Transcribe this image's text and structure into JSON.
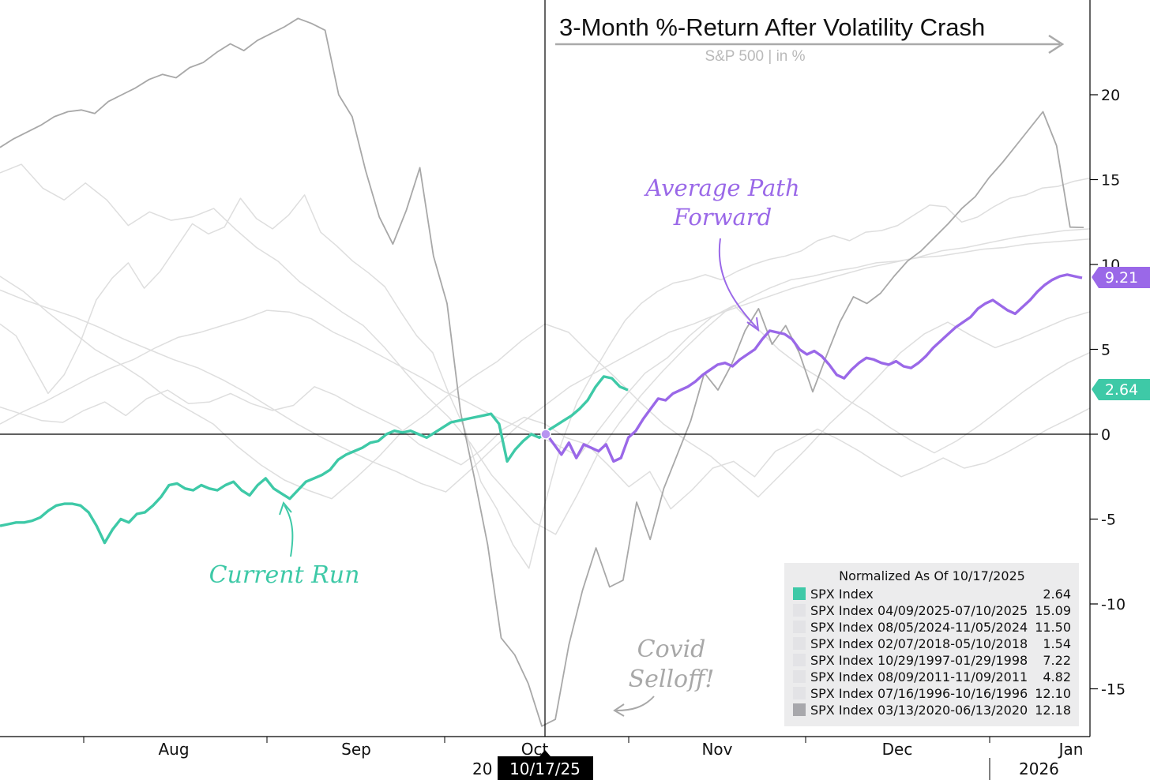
{
  "chart_data": {
    "type": "line",
    "title": "3-Month %-Return After Volatility Crash",
    "subtitle": "S&P 500  |  in %",
    "ylim": [
      -18,
      25
    ],
    "yticks": [
      20,
      15,
      10,
      5,
      0,
      -5,
      -10,
      -15
    ],
    "yticks_text": [
      "20",
      "15",
      "10",
      "5",
      "0",
      "-5",
      "-10",
      "-15"
    ],
    "x_tick_labels": [
      "Aug",
      "Sep",
      "Oct",
      "Nov",
      "Dec",
      "Jan"
    ],
    "x_year_left": "20",
    "x_year_right": "2026",
    "anchor_date": "10/17/25",
    "series": [
      {
        "name": "SPX Index",
        "value": 2.64,
        "value_text": "2.64",
        "color": "#3ec9a7",
        "x_range": [
          0,
          795
        ],
        "values": [
          -5.4,
          -5.3,
          -5.2,
          -5.2,
          -5.1,
          -4.9,
          -4.5,
          -4.2,
          -4.1,
          -4.1,
          -4.2,
          -4.6,
          -5.4,
          -6.4,
          -5.6,
          -5.0,
          -5.2,
          -4.7,
          -4.6,
          -4.2,
          -3.7,
          -3.0,
          -2.9,
          -3.2,
          -3.3,
          -3.0,
          -3.2,
          -3.3,
          -3.0,
          -2.8,
          -3.3,
          -3.6,
          -3.0,
          -2.6,
          -3.2,
          -3.5,
          -3.8,
          -3.3,
          -2.8,
          -2.6,
          -2.4,
          -2.1,
          -1.5,
          -1.2,
          -1.0,
          -0.8,
          -0.5,
          -0.4,
          0.0,
          0.2,
          0.1,
          0.2,
          0.0,
          -0.2,
          0.1,
          0.4,
          0.7,
          0.8,
          0.9,
          1.0,
          1.1,
          1.2,
          0.6,
          -1.6,
          -0.9,
          -0.4,
          0.0,
          -0.2,
          0.2,
          0.5,
          0.8,
          1.1,
          1.5,
          2.0,
          2.8,
          3.4,
          3.3,
          2.8,
          2.6
        ]
      },
      {
        "name": "Average Path Forward",
        "value": 9.21,
        "value_text": "9.21",
        "color": "#9a68e8",
        "x_range": [
          692,
          1370
        ],
        "values": [
          0.0,
          -0.6,
          -1.2,
          -0.5,
          -1.4,
          -0.6,
          -0.8,
          -1.0,
          -0.6,
          -1.6,
          -1.4,
          -0.2,
          0.2,
          0.9,
          1.5,
          2.1,
          2.0,
          2.4,
          2.6,
          2.8,
          3.1,
          3.5,
          3.8,
          4.1,
          4.2,
          4.0,
          4.4,
          4.7,
          5.0,
          5.6,
          6.1,
          6.0,
          5.9,
          5.6,
          5.0,
          4.7,
          4.9,
          4.6,
          4.1,
          3.5,
          3.3,
          3.8,
          4.2,
          4.5,
          4.4,
          4.2,
          4.1,
          4.3,
          4.0,
          3.9,
          4.2,
          4.6,
          5.1,
          5.5,
          5.9,
          6.3,
          6.6,
          6.9,
          7.4,
          7.7,
          7.9,
          7.6,
          7.3,
          7.1,
          7.5,
          7.9,
          8.4,
          8.8,
          9.1,
          9.3,
          9.4,
          9.3,
          9.21
        ]
      },
      {
        "name": "SPX Index 03/13/2020-06/13/2020",
        "value": 12.18,
        "value_text": "12.18",
        "color": "#a8a8a8",
        "x_range": [
          0,
          1372
        ],
        "values": [
          16.9,
          17.4,
          17.8,
          18.2,
          18.7,
          19.0,
          19.1,
          18.9,
          19.6,
          20.0,
          20.4,
          20.9,
          21.2,
          21.0,
          21.6,
          21.9,
          22.5,
          23.0,
          22.6,
          23.2,
          23.6,
          24.0,
          24.5,
          24.2,
          23.8,
          20.0,
          18.7,
          15.5,
          12.8,
          11.2,
          13.2,
          15.7,
          10.5,
          7.7,
          1.3,
          -2.5,
          -6.5,
          -12.0,
          -13.0,
          -14.7,
          -17.2,
          -16.8,
          -12.4,
          -9.2,
          -6.7,
          -9.0,
          -8.6,
          -4.0,
          -6.2,
          -3.2,
          -1.2,
          0.8,
          3.6,
          2.6,
          4.1,
          6.1,
          7.4,
          5.3,
          6.4,
          4.8,
          2.5,
          4.6,
          6.6,
          8.1,
          7.7,
          8.3,
          9.3,
          10.2,
          10.8,
          11.6,
          12.4,
          13.3,
          14.0,
          15.1,
          16.0,
          17.0,
          18.0,
          19.0,
          17.0,
          12.2,
          12.18
        ]
      },
      {
        "name": "SPX Index 04/09/2025-07/10/2025",
        "value": 15.09,
        "value_text": "15.09",
        "color": "#dedede",
        "x_range": [
          0,
          1380
        ],
        "values": [
          6.5,
          5.8,
          4.1,
          2.4,
          3.5,
          5.4,
          7.9,
          9.2,
          10.1,
          8.6,
          9.6,
          11.0,
          12.4,
          11.8,
          12.2,
          13.9,
          12.7,
          12.1,
          12.9,
          14.1,
          11.9,
          11.1,
          10.2,
          9.5,
          8.7,
          7.2,
          5.8,
          4.8,
          2.4,
          0.3,
          -2.8,
          -4.4,
          -6.5,
          -7.9,
          -4.1,
          -0.6,
          1.9,
          3.6,
          5.2,
          6.7,
          7.7,
          8.4,
          8.9,
          9.1,
          9.4,
          9.1,
          9.6,
          10.0,
          10.3,
          10.5,
          10.8,
          11.4,
          11.7,
          11.4,
          11.9,
          12.0,
          12.3,
          12.9,
          13.5,
          13.4,
          12.5,
          12.8,
          13.4,
          13.9,
          14.1,
          14.5,
          14.6,
          14.9,
          15.09
        ]
      },
      {
        "name": "SPX Index 08/05/2024-11/05/2024",
        "value": 11.5,
        "value_text": "11.50",
        "color": "#dedede",
        "x_range": [
          0,
          1380
        ],
        "values": [
          15.4,
          15.9,
          14.5,
          13.8,
          14.8,
          13.8,
          12.3,
          13.1,
          12.6,
          12.8,
          13.3,
          12.1,
          11.0,
          10.2,
          9.0,
          8.1,
          7.2,
          6.4,
          5.1,
          3.6,
          2.2,
          1.0,
          -0.5,
          -2.4,
          -3.8,
          -5.2,
          -5.9,
          -3.6,
          -1.1,
          0.7,
          2.3,
          3.7,
          5.0,
          6.2,
          7.3,
          8.0,
          8.6,
          9.1,
          9.3,
          9.6,
          9.8,
          10.1,
          10.2,
          10.4,
          10.5,
          10.7,
          10.9,
          11.0,
          11.2,
          11.3,
          11.4,
          11.5
        ]
      },
      {
        "name": "SPX Index 02/07/2018-05/10/2018",
        "value": 1.54,
        "value_text": "1.54",
        "color": "#dedede",
        "x_range": [
          0,
          1380
        ],
        "values": [
          1.6,
          1.2,
          0.8,
          0.7,
          1.4,
          1.9,
          1.1,
          2.1,
          2.6,
          1.8,
          1.9,
          2.4,
          1.8,
          1.4,
          1.7,
          2.8,
          2.3,
          1.6,
          1.0,
          0.4,
          -0.6,
          -1.2,
          -1.8,
          -0.9,
          0.3,
          1.0,
          0.6,
          -0.2,
          -0.6,
          -1.8,
          -3.1,
          -2.2,
          -4.4,
          -3.3,
          -2.0,
          -1.6,
          -2.5,
          -1.0,
          -0.4,
          0.3,
          -0.3,
          -1.0,
          -1.8,
          -2.5,
          -2.0,
          -1.4,
          -2.0,
          -1.7,
          -1.1,
          -0.4,
          0.3,
          0.9,
          1.54
        ]
      },
      {
        "name": "SPX Index 10/29/1997-01/29/1998",
        "value": 7.22,
        "value_text": "7.22",
        "color": "#dedede",
        "x_range": [
          0,
          1380
        ],
        "values": [
          9.3,
          8.4,
          7.2,
          6.1,
          5.0,
          4.2,
          3.3,
          2.2,
          1.4,
          0.6,
          -0.7,
          -1.8,
          -2.7,
          -3.3,
          -3.8,
          -2.6,
          -1.3,
          0.2,
          1.2,
          2.4,
          3.4,
          4.3,
          5.5,
          6.5,
          6.0,
          4.6,
          3.3,
          1.9,
          0.6,
          -0.4,
          -1.3,
          -2.5,
          -3.7,
          -2.3,
          -0.9,
          0.6,
          1.9,
          3.3,
          4.8,
          5.9,
          6.6,
          5.8,
          5.1,
          5.6,
          6.2,
          6.8,
          7.22
        ]
      },
      {
        "name": "SPX Index 08/09/2011-11/09/2011",
        "value": 4.82,
        "value_text": "4.82",
        "color": "#dedede",
        "x_range": [
          0,
          1380
        ],
        "values": [
          0.6,
          1.3,
          1.9,
          2.6,
          3.3,
          3.9,
          4.4,
          5.1,
          5.7,
          6.0,
          6.4,
          6.8,
          7.3,
          7.2,
          6.8,
          6.0,
          5.4,
          4.7,
          4.0,
          3.3,
          2.5,
          1.9,
          1.2,
          0.6,
          0.0,
          -0.6,
          -1.3,
          0.4,
          2.1,
          3.6,
          4.5,
          5.8,
          6.9,
          7.6,
          6.3,
          5.0,
          4.0,
          3.2,
          2.1,
          1.3,
          0.4,
          -0.4,
          -1.1,
          -0.4,
          0.5,
          1.5,
          2.5,
          3.4,
          4.2,
          4.82
        ]
      },
      {
        "name": "SPX Index 07/16/1996-10/16/1996",
        "value": 12.1,
        "value_text": "12.10",
        "color": "#dedede",
        "x_range": [
          0,
          1380
        ],
        "values": [
          8.5,
          7.9,
          7.4,
          6.9,
          6.3,
          5.6,
          5.0,
          4.4,
          3.9,
          3.2,
          2.4,
          1.5,
          0.6,
          -0.2,
          -0.9,
          -1.6,
          -2.2,
          -2.9,
          -3.4,
          -2.1,
          -0.7,
          0.6,
          1.7,
          2.8,
          3.6,
          4.4,
          5.2,
          6.0,
          6.5,
          7.1,
          7.6,
          8.1,
          8.6,
          9.0,
          9.4,
          9.8,
          10.1,
          10.4,
          10.8,
          11.0,
          11.3,
          11.6,
          11.8,
          12.0,
          12.1
        ]
      }
    ],
    "legend": {
      "title": "Normalized As Of 10/17/2025",
      "entries": [
        {
          "label": "SPX Index",
          "value": "2.64",
          "color": "#3ec9a7"
        },
        {
          "label": "SPX Index 04/09/2025-07/10/2025",
          "value": "15.09",
          "color": "#e3e3e6"
        },
        {
          "label": "SPX Index 08/05/2024-11/05/2024",
          "value": "11.50",
          "color": "#e3e3e6"
        },
        {
          "label": "SPX Index 02/07/2018-05/10/2018",
          "value": "1.54",
          "color": "#e3e3e6"
        },
        {
          "label": "SPX Index 10/29/1997-01/29/1998",
          "value": "7.22",
          "color": "#e3e3e6"
        },
        {
          "label": "SPX Index 08/09/2011-11/09/2011",
          "value": "4.82",
          "color": "#e3e3e6"
        },
        {
          "label": "SPX Index 07/16/1996-10/16/1996",
          "value": "12.10",
          "color": "#e3e3e6"
        },
        {
          "label": "SPX Index 03/13/2020-06/13/2020",
          "value": "12.18",
          "color": "#a8a8ac"
        }
      ]
    },
    "annotations": {
      "average_path": [
        "Average Path",
        "Forward"
      ],
      "current_run": "Current Run",
      "covid": [
        "Covid",
        "Selloff!"
      ]
    }
  }
}
